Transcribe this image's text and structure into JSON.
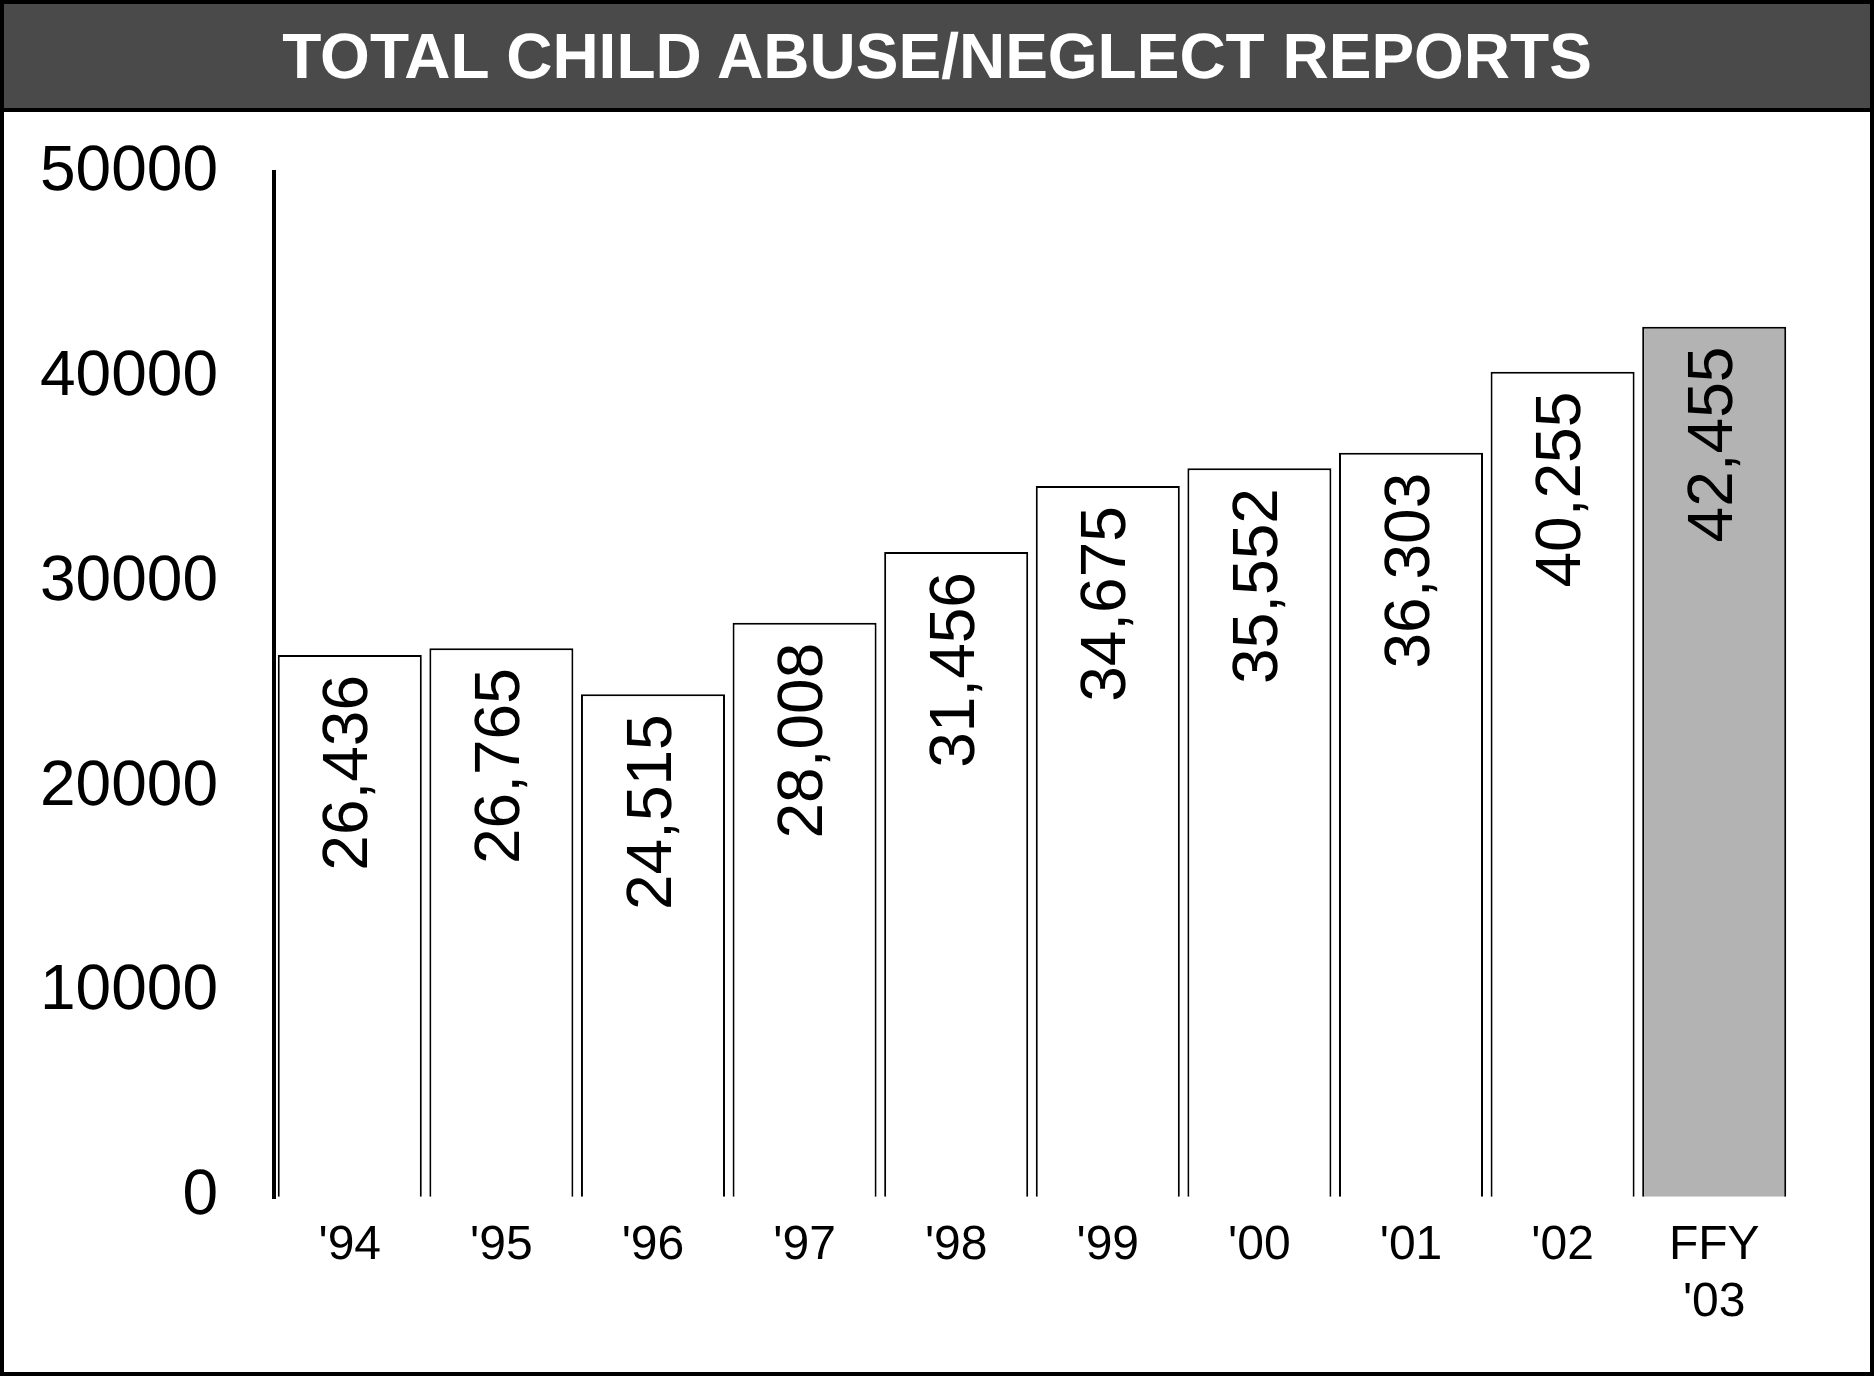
{
  "chart_data": {
    "type": "bar",
    "title": "TOTAL CHILD ABUSE/NEGLECT REPORTS",
    "categories": [
      "'94",
      "'95",
      "'96",
      "'97",
      "'98",
      "'99",
      "'00",
      "'01",
      "'02",
      "FFY '03"
    ],
    "values": [
      26436,
      26765,
      24515,
      28008,
      31456,
      34675,
      35552,
      36303,
      40255,
      42455
    ],
    "value_labels": [
      "26,436",
      "26,765",
      "24,515",
      "28,008",
      "31,456",
      "34,675",
      "35,552",
      "36,303",
      "40,255",
      "42,455"
    ],
    "colors": [
      "#ffffff",
      "#ffffff",
      "#ffffff",
      "#ffffff",
      "#ffffff",
      "#ffffff",
      "#ffffff",
      "#ffffff",
      "#ffffff",
      "#b3b3b3"
    ],
    "ylim": [
      0,
      50000
    ],
    "yticks": [
      0,
      10000,
      20000,
      30000,
      40000,
      50000
    ],
    "grid": false,
    "legend": false
  }
}
